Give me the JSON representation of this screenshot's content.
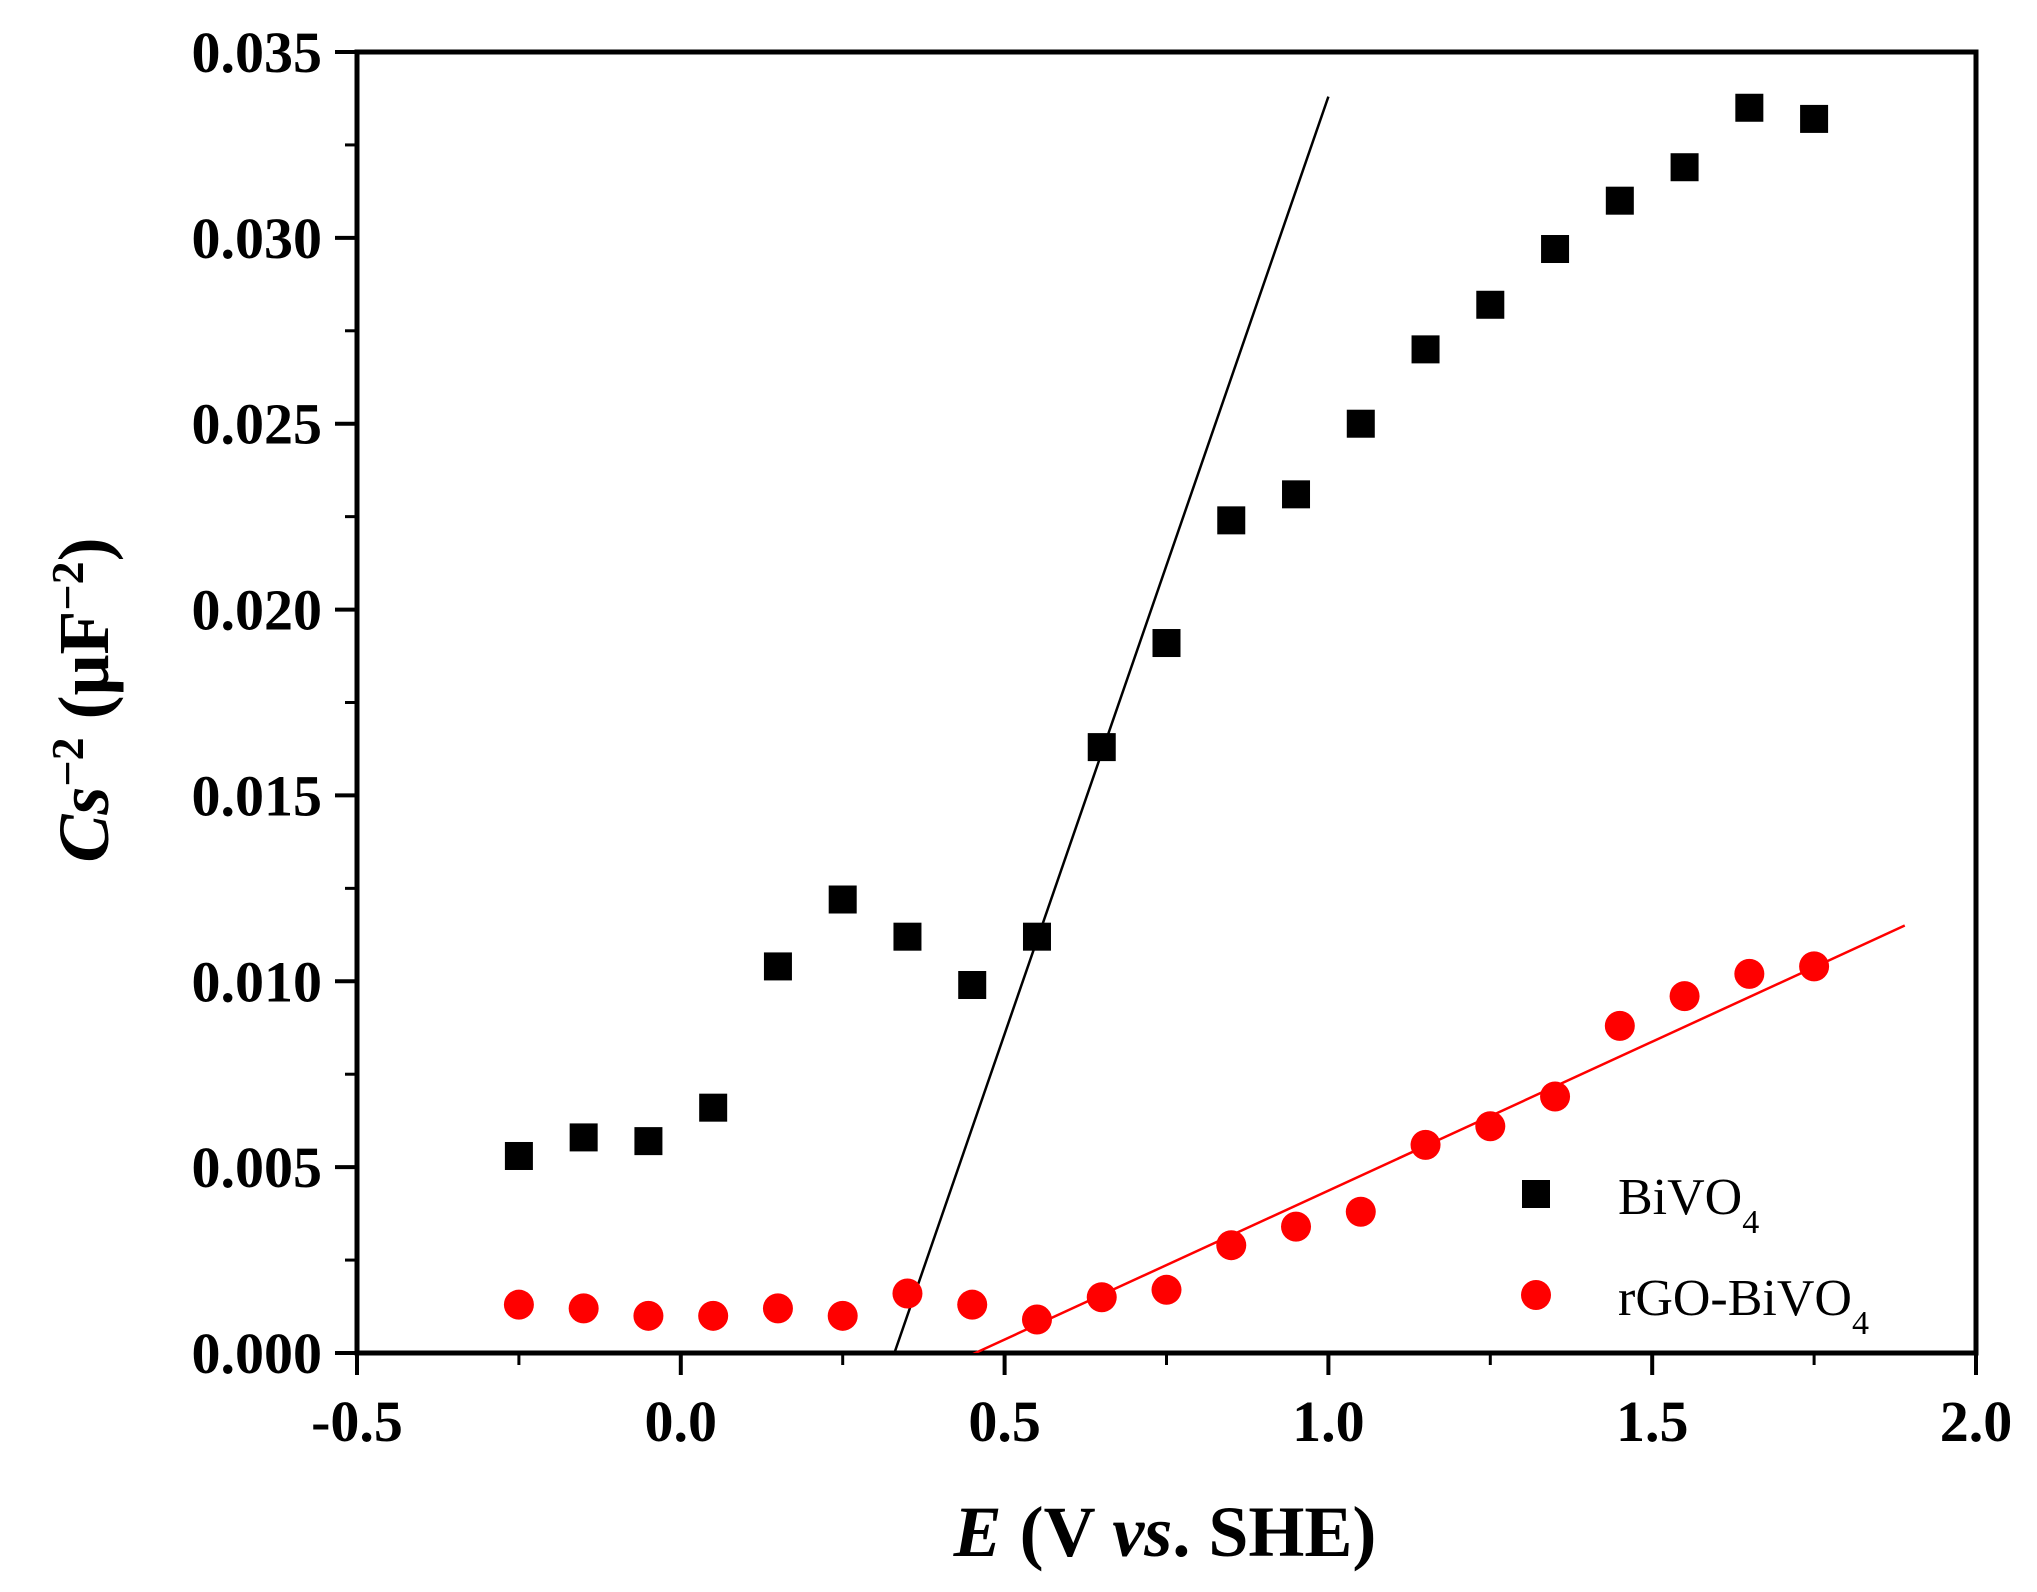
{
  "chart_data": {
    "type": "scatter",
    "title": "",
    "xlabel": {
      "italic": "E",
      "main_a": " (V ",
      "italic2": "vs",
      "main_b": ". SHE)"
    },
    "ylabel": {
      "italic": "Cs",
      "sup": "−2",
      "main": " (μF",
      "sup2": "−2",
      "close": ")"
    },
    "xlim": [
      -0.5,
      2.0
    ],
    "ylim": [
      0.0,
      0.035
    ],
    "x_ticks": [
      -0.5,
      0.0,
      0.5,
      1.0,
      1.5,
      2.0
    ],
    "x_tick_labels": [
      "-0.5",
      "0.0",
      "0.5",
      "1.0",
      "1.5",
      "2.0"
    ],
    "y_ticks": [
      0.0,
      0.005,
      0.01,
      0.015,
      0.02,
      0.025,
      0.03,
      0.035
    ],
    "y_tick_labels": [
      "0.000",
      "0.005",
      "0.010",
      "0.015",
      "0.020",
      "0.025",
      "0.030",
      "0.035"
    ],
    "grid": false,
    "legend_position": "bottom-right",
    "series": [
      {
        "name_main": "BiVO",
        "name_sub": "4",
        "marker": "square",
        "color": "#000000",
        "x": [
          -0.25,
          -0.15,
          -0.05,
          0.05,
          0.15,
          0.25,
          0.35,
          0.45,
          0.55,
          0.65,
          0.75,
          0.85,
          0.95,
          1.05,
          1.15,
          1.25,
          1.35,
          1.45,
          1.55,
          1.65,
          1.75
        ],
        "y": [
          0.0053,
          0.0058,
          0.0057,
          0.0066,
          0.0104,
          0.0122,
          0.0112,
          0.0099,
          0.0112,
          0.0163,
          0.0191,
          0.0224,
          0.0231,
          0.025,
          0.027,
          0.0282,
          0.0297,
          0.031,
          0.0319,
          0.0335,
          0.0332
        ],
        "fit_line": {
          "x": [
            0.31,
            1.0
          ],
          "y": [
            -0.001,
            0.0338
          ]
        }
      },
      {
        "name_main": "rGO-BiVO",
        "name_sub": "4",
        "marker": "circle",
        "color": "#ff0000",
        "x": [
          -0.25,
          -0.15,
          -0.05,
          0.05,
          0.15,
          0.25,
          0.35,
          0.45,
          0.55,
          0.65,
          0.75,
          0.85,
          0.95,
          1.05,
          1.15,
          1.25,
          1.35,
          1.45,
          1.55,
          1.65,
          1.75
        ],
        "y": [
          0.0013,
          0.0012,
          0.001,
          0.001,
          0.0012,
          0.001,
          0.0016,
          0.0013,
          0.0009,
          0.0015,
          0.0017,
          0.0029,
          0.0034,
          0.0038,
          0.0056,
          0.0061,
          0.0069,
          0.0088,
          0.0096,
          0.0102,
          0.0104
        ],
        "fit_line": {
          "x": [
            0.33,
            1.89
          ],
          "y": [
            -0.001,
            0.0115
          ]
        }
      }
    ]
  }
}
